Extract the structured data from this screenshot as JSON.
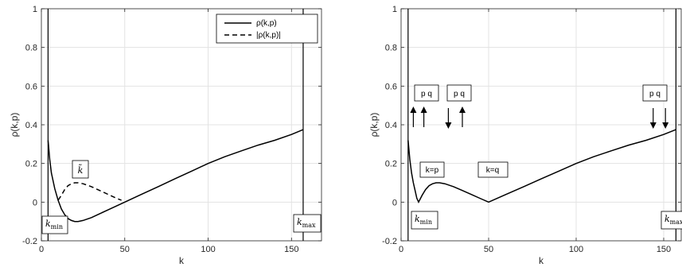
{
  "chart_data": [
    {
      "type": "line",
      "xlabel": "k",
      "ylabel": "ρ(k,p)",
      "xlim": [
        0,
        168
      ],
      "ylim": [
        -0.2,
        1
      ],
      "xticks": [
        "0",
        "50",
        "100",
        "150"
      ],
      "yticks": [
        "-0.2",
        "0",
        "0.2",
        "0.4",
        "0.6",
        "0.8",
        "1"
      ],
      "grid": true,
      "legend": {
        "position": "top-right",
        "entries": [
          "ρ(k,p)",
          "|ρ(k,p)|"
        ]
      },
      "vlines_x": [
        4,
        157
      ],
      "series": [
        {
          "name": "ρ(k,p)",
          "style": "solid",
          "x": [
            4,
            5,
            6,
            8,
            10,
            12,
            14,
            16,
            18,
            20,
            22,
            25,
            30,
            35,
            40,
            45,
            50,
            60,
            70,
            80,
            90,
            100,
            110,
            120,
            130,
            140,
            150,
            157
          ],
          "y": [
            0.32,
            0.22,
            0.15,
            0.07,
            0.01,
            -0.035,
            -0.065,
            -0.085,
            -0.095,
            -0.1,
            -0.1,
            -0.095,
            -0.08,
            -0.06,
            -0.04,
            -0.02,
            0.0,
            0.04,
            0.08,
            0.12,
            0.16,
            0.2,
            0.235,
            0.265,
            0.295,
            0.32,
            0.35,
            0.375
          ]
        },
        {
          "name": "|ρ(k,p)|",
          "style": "dashed",
          "x": [
            10,
            12,
            14,
            16,
            18,
            20,
            22,
            25,
            30,
            35,
            40,
            45,
            48
          ],
          "y": [
            0.01,
            0.035,
            0.065,
            0.085,
            0.095,
            0.1,
            0.1,
            0.095,
            0.08,
            0.06,
            0.04,
            0.02,
            0.01
          ]
        }
      ],
      "annotations": [
        {
          "text": "k̃",
          "x": 22,
          "y": 0.17
        },
        {
          "text": "k_min",
          "x": 6,
          "y": -0.13
        },
        {
          "text": "k_max",
          "x": 162,
          "y": -0.12
        }
      ]
    },
    {
      "type": "line",
      "xlabel": "k",
      "ylabel": "ρ(k,p)",
      "xlim": [
        0,
        160
      ],
      "ylim": [
        -0.2,
        1
      ],
      "xticks": [
        "0",
        "50",
        "100",
        "150"
      ],
      "yticks": [
        "-0.2",
        "0",
        "0.2",
        "0.4",
        "0.6",
        "0.8",
        "1"
      ],
      "grid": true,
      "vlines_x": [
        4,
        157
      ],
      "series": [
        {
          "style": "solid",
          "x": [
            4,
            5,
            6,
            7,
            8,
            9,
            10,
            12,
            14,
            16,
            18,
            20,
            22,
            25,
            30,
            35,
            40,
            45,
            50,
            60,
            70,
            80,
            90,
            100,
            110,
            120,
            130,
            140,
            150,
            157
          ],
          "y": [
            0.32,
            0.22,
            0.15,
            0.1,
            0.06,
            0.02,
            0.0,
            0.035,
            0.065,
            0.085,
            0.095,
            0.1,
            0.1,
            0.095,
            0.08,
            0.06,
            0.04,
            0.02,
            0.0,
            0.04,
            0.08,
            0.12,
            0.16,
            0.2,
            0.235,
            0.265,
            0.295,
            0.32,
            0.35,
            0.375
          ]
        }
      ],
      "annotations": [
        {
          "text": "p q",
          "x": 10
        },
        {
          "text": "p q",
          "x": 31
        },
        {
          "text": "p q",
          "x": 147
        },
        {
          "text": "k=p",
          "x": 14,
          "y": 0.075
        },
        {
          "text": "k=q",
          "x": 45,
          "y": 0.075
        },
        {
          "text": "k_min",
          "x": 8,
          "y": -0.105
        },
        {
          "text": "k_max",
          "x": 160,
          "y": -0.105
        }
      ],
      "arrows": [
        {
          "x": 7,
          "direction": "up"
        },
        {
          "x": 13,
          "direction": "up"
        },
        {
          "x": 27,
          "direction": "down"
        },
        {
          "x": 35,
          "direction": "up"
        },
        {
          "x": 144,
          "direction": "down"
        },
        {
          "x": 151,
          "direction": "down"
        }
      ]
    }
  ]
}
